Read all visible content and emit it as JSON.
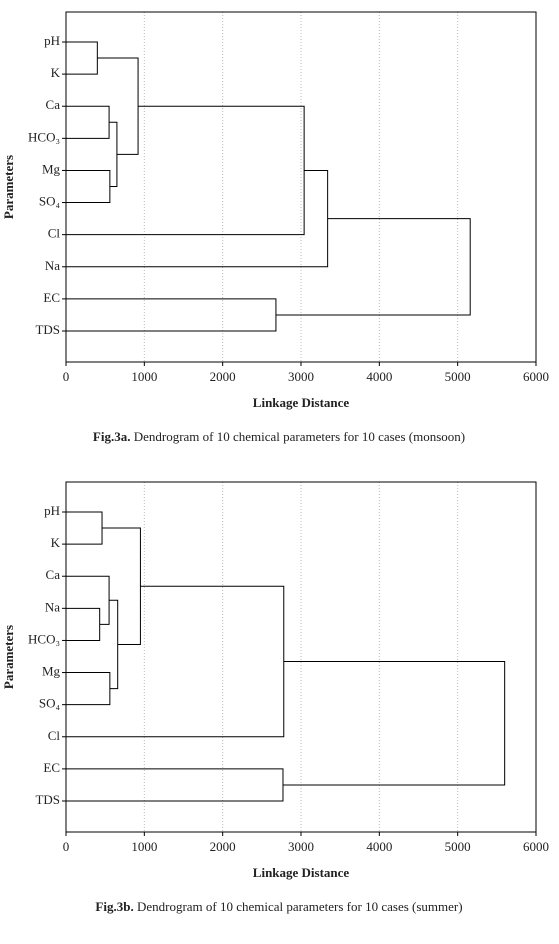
{
  "chart_data": [
    {
      "type": "dendrogram",
      "categories": [
        "pH",
        "K",
        "Ca",
        "HCO₃",
        "Mg",
        "SO₄",
        "Cl",
        "Na",
        "EC",
        "TDS"
      ],
      "merges": [
        [
          0,
          1
        ],
        [
          2,
          3
        ],
        [
          4,
          5
        ],
        [
          11,
          12
        ],
        [
          10,
          13
        ],
        [
          14,
          6
        ],
        [
          15,
          7
        ],
        [
          8,
          9
        ],
        [
          16,
          17
        ]
      ],
      "distances": [
        400,
        550,
        560,
        650,
        920,
        3040,
        3340,
        2680,
        5160
      ],
      "xlim": [
        0,
        6000
      ],
      "xticks": [
        0,
        1000,
        2000,
        3000,
        4000,
        5000,
        6000
      ],
      "xlabel": "Linkage Distance",
      "ylabel": "Parameters",
      "grid": true,
      "color": "#000000",
      "caption": {
        "label": "Fig.3a.",
        "text": "Dendrogram of 10 chemical parameters for 10 cases (monsoon)"
      }
    },
    {
      "type": "dendrogram",
      "categories": [
        "pH",
        "K",
        "Ca",
        "Na",
        "HCO₃",
        "Mg",
        "SO₄",
        "Cl",
        "EC",
        "TDS"
      ],
      "merges": [
        [
          0,
          1
        ],
        [
          3,
          4
        ],
        [
          2,
          11
        ],
        [
          5,
          6
        ],
        [
          12,
          13
        ],
        [
          10,
          14
        ],
        [
          15,
          7
        ],
        [
          8,
          9
        ],
        [
          16,
          17
        ]
      ],
      "distances": [
        460,
        430,
        550,
        560,
        660,
        950,
        2780,
        2770,
        5600
      ],
      "xlim": [
        0,
        6000
      ],
      "xticks": [
        0,
        1000,
        2000,
        3000,
        4000,
        5000,
        6000
      ],
      "xlabel": "Linkage Distance",
      "ylabel": "Parameters",
      "grid": true,
      "color": "#000000",
      "caption": {
        "label": "Fig.3b.",
        "text": "Dendrogram of 10 chemical parameters for 10 cases (summer)"
      }
    }
  ]
}
